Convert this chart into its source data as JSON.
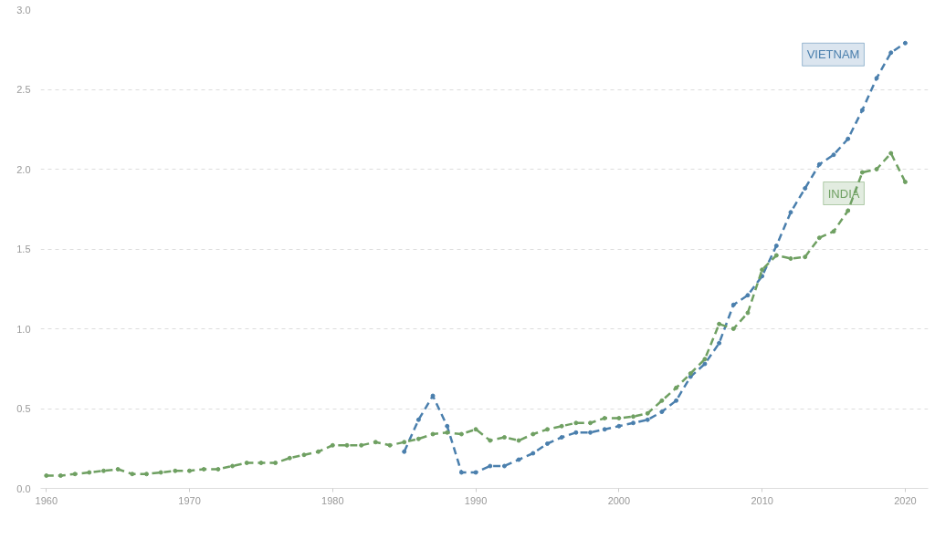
{
  "chart_data": {
    "type": "line",
    "x": [
      1960,
      1961,
      1962,
      1963,
      1964,
      1965,
      1966,
      1967,
      1968,
      1969,
      1970,
      1971,
      1972,
      1973,
      1974,
      1975,
      1976,
      1977,
      1978,
      1979,
      1980,
      1981,
      1982,
      1983,
      1984,
      1985,
      1986,
      1987,
      1988,
      1989,
      1990,
      1991,
      1992,
      1993,
      1994,
      1995,
      1996,
      1997,
      1998,
      1999,
      2000,
      2001,
      2002,
      2003,
      2004,
      2005,
      2006,
      2007,
      2008,
      2009,
      2010,
      2011,
      2012,
      2013,
      2014,
      2015,
      2016,
      2017,
      2018,
      2019,
      2020
    ],
    "series": [
      {
        "name": "VIETNAM",
        "color": "#4a7fad",
        "values": [
          null,
          null,
          null,
          null,
          null,
          null,
          null,
          null,
          null,
          null,
          null,
          null,
          null,
          null,
          null,
          null,
          null,
          null,
          null,
          null,
          null,
          null,
          null,
          null,
          null,
          0.23,
          0.43,
          0.58,
          0.39,
          0.1,
          0.1,
          0.14,
          0.14,
          0.18,
          0.22,
          0.28,
          0.32,
          0.35,
          0.35,
          0.37,
          0.39,
          0.41,
          0.43,
          0.48,
          0.55,
          0.7,
          0.78,
          0.91,
          1.15,
          1.21,
          1.33,
          1.52,
          1.73,
          1.88,
          2.03,
          2.09,
          2.19,
          2.37,
          2.57,
          2.73,
          2.79
        ]
      },
      {
        "name": "INDIA",
        "color": "#6fa062",
        "values": [
          0.08,
          0.08,
          0.09,
          0.1,
          0.11,
          0.12,
          0.09,
          0.09,
          0.1,
          0.11,
          0.11,
          0.12,
          0.12,
          0.14,
          0.16,
          0.16,
          0.16,
          0.19,
          0.21,
          0.23,
          0.27,
          0.27,
          0.27,
          0.29,
          0.27,
          0.29,
          0.31,
          0.34,
          0.35,
          0.34,
          0.37,
          0.3,
          0.32,
          0.3,
          0.34,
          0.37,
          0.39,
          0.41,
          0.41,
          0.44,
          0.44,
          0.45,
          0.47,
          0.55,
          0.63,
          0.72,
          0.81,
          1.03,
          1.0,
          1.1,
          1.37,
          1.46,
          1.44,
          1.45,
          1.57,
          1.61,
          1.74,
          1.98,
          2.0,
          2.1,
          1.92
        ]
      }
    ],
    "xlim": [
      1959.6,
      2021.6
    ],
    "xticks": [
      1960,
      1970,
      1980,
      1990,
      2000,
      2010,
      2020
    ],
    "ylim": [
      0,
      3.0
    ],
    "yticks": [
      {
        "value": 0,
        "label": "0.0"
      },
      {
        "value": 0.5,
        "label": "0.5"
      },
      {
        "value": 1,
        "label": "1.0"
      },
      {
        "value": 1.5,
        "label": "1.5"
      },
      {
        "value": 2,
        "label": "2.0"
      },
      {
        "value": 2.5,
        "label": "2.5"
      },
      {
        "value": 3,
        "label": "3.0"
      }
    ],
    "grid": "y",
    "marker": "circle",
    "line_style": "dashed"
  }
}
